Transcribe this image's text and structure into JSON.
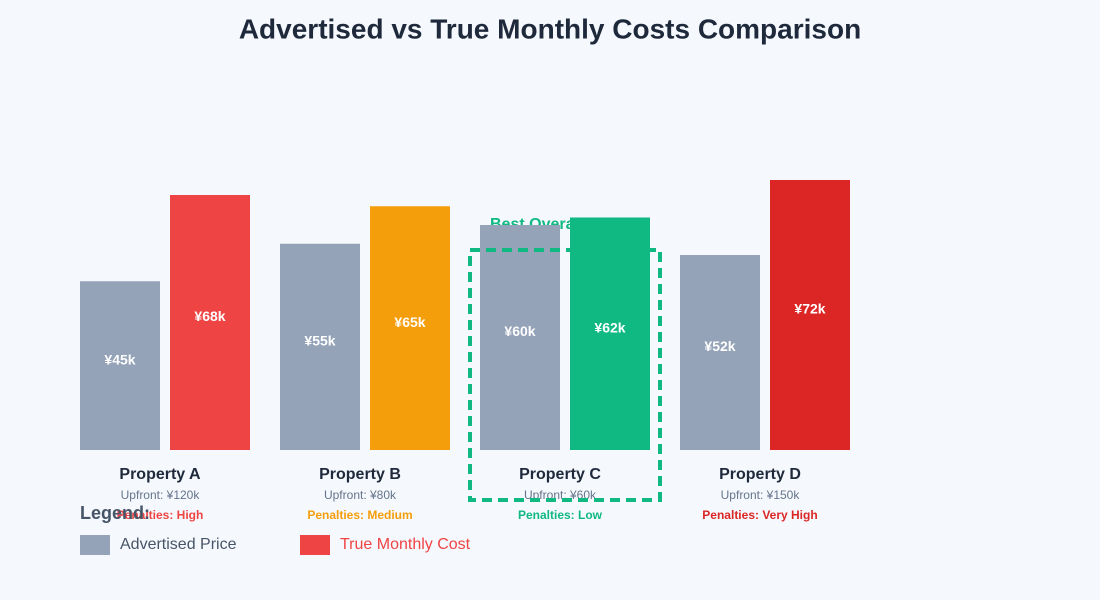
{
  "chart_data": {
    "type": "bar",
    "title": "Advertised vs True Monthly Costs Comparison",
    "categories": [
      "Property A",
      "Property B",
      "Property C",
      "Property D"
    ],
    "upfront": [
      "Upfront: ¥120k",
      "Upfront: ¥80k",
      "Upfront: ¥60k",
      "Upfront: ¥150k"
    ],
    "penalties": [
      "Penalties: High",
      "Penalties: Medium",
      "Penalties: Low",
      "Penalties: Very High"
    ],
    "annotation": "Best Overall",
    "legend_title": "Legend:",
    "series": [
      {
        "name": "Advertised Price",
        "color": "#94a3b8",
        "values": [
          45000,
          55000,
          60000,
          52000
        ],
        "value_labels": [
          "¥45k",
          "¥55k",
          "¥60k",
          "¥52k"
        ]
      },
      {
        "name": "True Monthly Cost",
        "color": "#ef4444",
        "colors": [
          "#ef4444",
          "#f59e0b",
          "#10b981",
          "#dc2626"
        ],
        "values": [
          68000,
          65000,
          62000,
          72000
        ],
        "value_labels": [
          "¥68k",
          "¥65k",
          "¥62k",
          "¥72k"
        ]
      }
    ]
  }
}
